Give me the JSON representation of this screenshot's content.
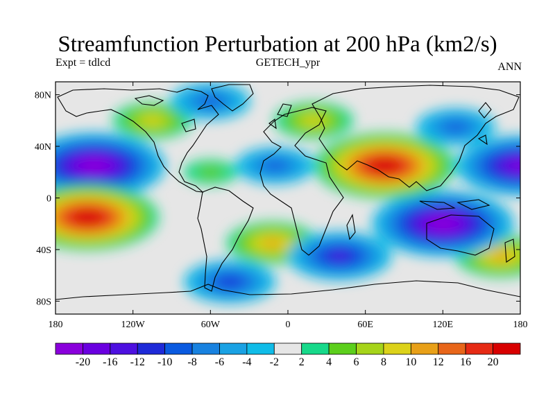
{
  "title": "Streamfunction Perturbation at 200 hPa (km2/s)",
  "left_label": "Expt = tdlcd",
  "center_label": "GETECH_ypr",
  "right_label": "ANN",
  "chart_data": {
    "type": "heatmap",
    "projection": "cylindrical equidistant, global",
    "variable": "streamfunction perturbation",
    "units": "km2/s",
    "x_range": [
      -180,
      180
    ],
    "y_range": [
      -90,
      90
    ],
    "x_ticks": [
      {
        "value": -180,
        "label": "180"
      },
      {
        "value": -120,
        "label": "120W"
      },
      {
        "value": -60,
        "label": "60W"
      },
      {
        "value": 0,
        "label": "0"
      },
      {
        "value": 60,
        "label": "60E"
      },
      {
        "value": 120,
        "label": "120E"
      },
      {
        "value": 180,
        "label": "180"
      }
    ],
    "y_ticks": [
      {
        "value": 80,
        "label": "80N"
      },
      {
        "value": 40,
        "label": "40N"
      },
      {
        "value": 0,
        "label": "0"
      },
      {
        "value": -40,
        "label": "40S"
      },
      {
        "value": -80,
        "label": "80S"
      }
    ],
    "contour_levels": [
      -20,
      -16,
      -12,
      -10,
      -8,
      -6,
      -4,
      -2,
      2,
      4,
      6,
      8,
      10,
      12,
      16,
      20
    ],
    "colorbar_labels": [
      "-20",
      "-16",
      "-12",
      "-10",
      "-8",
      "-6",
      "-4",
      "-2",
      "2",
      "4",
      "6",
      "8",
      "10",
      "12",
      "16",
      "20"
    ],
    "colors": [
      "#8a00dc",
      "#6a00e0",
      "#4d10e0",
      "#1e2ad8",
      "#0a5ae0",
      "#1882e0",
      "#1aa2e4",
      "#10bce8",
      "#e6e6e6",
      "#17d98a",
      "#5ccf1c",
      "#a6d41a",
      "#dcd21a",
      "#e8a018",
      "#e8661a",
      "#e62a14",
      "#d80000"
    ],
    "features": [
      {
        "lon": -150,
        "lat": 25,
        "value": -20
      },
      {
        "lon": -155,
        "lat": -15,
        "value": 20
      },
      {
        "lon": 120,
        "lat": -20,
        "value": -20
      },
      {
        "lon": 75,
        "lat": 25,
        "value": 20
      },
      {
        "lon": 180,
        "lat": 25,
        "value": -16
      },
      {
        "lon": -105,
        "lat": 60,
        "value": 6
      },
      {
        "lon": 20,
        "lat": 60,
        "value": 6
      },
      {
        "lon": 130,
        "lat": 55,
        "value": -6
      },
      {
        "lon": -60,
        "lat": 75,
        "value": -6
      },
      {
        "lon": -45,
        "lat": -65,
        "value": -8
      },
      {
        "lon": 40,
        "lat": -45,
        "value": -10
      },
      {
        "lon": -10,
        "lat": 25,
        "value": -6
      },
      {
        "lon": -12,
        "lat": -35,
        "value": 8
      },
      {
        "lon": 165,
        "lat": -45,
        "value": 8
      },
      {
        "lon": -60,
        "lat": 20,
        "value": 2
      }
    ]
  }
}
